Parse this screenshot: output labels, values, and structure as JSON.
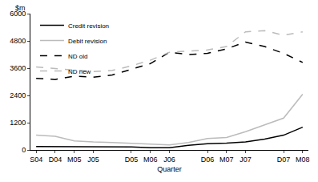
{
  "chart_data": {
    "type": "line",
    "x_label": "Quarter",
    "y_label": "$m",
    "categories": [
      "S04",
      "D04",
      "M05",
      "J05",
      null,
      "D05",
      "M06",
      "J06",
      null,
      "D06",
      "M07",
      "J07",
      null,
      "D07",
      "M08"
    ],
    "series": [
      {
        "name": "Credit revision",
        "color": "#000000",
        "line_style": "solid",
        "values": [
          150,
          150,
          150,
          150,
          150,
          130,
          100,
          100,
          200,
          270,
          300,
          350,
          480,
          650,
          1000
        ]
      },
      {
        "name": "Debit revision",
        "color": "#bbbbbb",
        "line_style": "solid",
        "values": [
          650,
          600,
          400,
          350,
          330,
          300,
          250,
          220,
          330,
          500,
          550,
          800,
          1100,
          1400,
          2450
        ]
      },
      {
        "name": "ND old",
        "color": "#000000",
        "line_style": "dash",
        "values": [
          3150,
          3100,
          3250,
          3200,
          3300,
          3550,
          3800,
          4300,
          4200,
          4250,
          4450,
          4750,
          4550,
          4250,
          3850
        ]
      },
      {
        "name": "ND new",
        "color": "#bbbbbb",
        "line_style": "dash",
        "values": [
          3650,
          3580,
          3500,
          3450,
          3500,
          3700,
          3950,
          4300,
          4350,
          4400,
          4550,
          5200,
          5250,
          5050,
          5200
        ]
      }
    ],
    "ylim": [
      0,
      6000
    ],
    "yticks": [
      0,
      1200,
      2400,
      3600,
      4800,
      6000
    ],
    "grid": false,
    "legend": "top-left"
  }
}
